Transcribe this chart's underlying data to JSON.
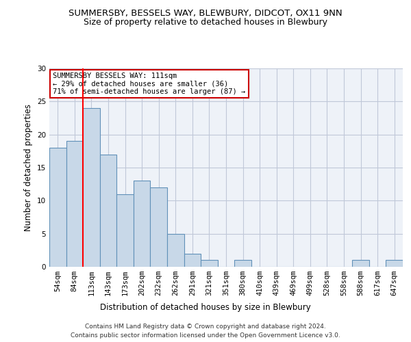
{
  "title": "SUMMERSBY, BESSELS WAY, BLEWBURY, DIDCOT, OX11 9NN",
  "subtitle": "Size of property relative to detached houses in Blewbury",
  "xlabel": "Distribution of detached houses by size in Blewbury",
  "ylabel": "Number of detached properties",
  "categories": [
    "54sqm",
    "84sqm",
    "113sqm",
    "143sqm",
    "173sqm",
    "202sqm",
    "232sqm",
    "262sqm",
    "291sqm",
    "321sqm",
    "351sqm",
    "380sqm",
    "410sqm",
    "439sqm",
    "469sqm",
    "499sqm",
    "528sqm",
    "558sqm",
    "588sqm",
    "617sqm",
    "647sqm"
  ],
  "values": [
    18,
    19,
    24,
    17,
    11,
    13,
    12,
    5,
    2,
    1,
    0,
    1,
    0,
    0,
    0,
    0,
    0,
    0,
    1,
    0,
    1
  ],
  "bar_color": "#c8d8e8",
  "bar_edge_color": "#6090b8",
  "red_line_index": 2,
  "annotation_text": "SUMMERSBY BESSELS WAY: 111sqm\n← 29% of detached houses are smaller (36)\n71% of semi-detached houses are larger (87) →",
  "annotation_box_color": "#ffffff",
  "annotation_box_edge": "#cc0000",
  "grid_color": "#c0c8d8",
  "background_color": "#eef2f8",
  "ylim": [
    0,
    30
  ],
  "yticks": [
    0,
    5,
    10,
    15,
    20,
    25,
    30
  ],
  "footer_line1": "Contains HM Land Registry data © Crown copyright and database right 2024.",
  "footer_line2": "Contains public sector information licensed under the Open Government Licence v3.0.",
  "title_fontsize": 9.5,
  "subtitle_fontsize": 9,
  "xlabel_fontsize": 8.5,
  "ylabel_fontsize": 8.5,
  "tick_fontsize": 7.5,
  "footer_fontsize": 6.5,
  "annotation_fontsize": 7.5
}
